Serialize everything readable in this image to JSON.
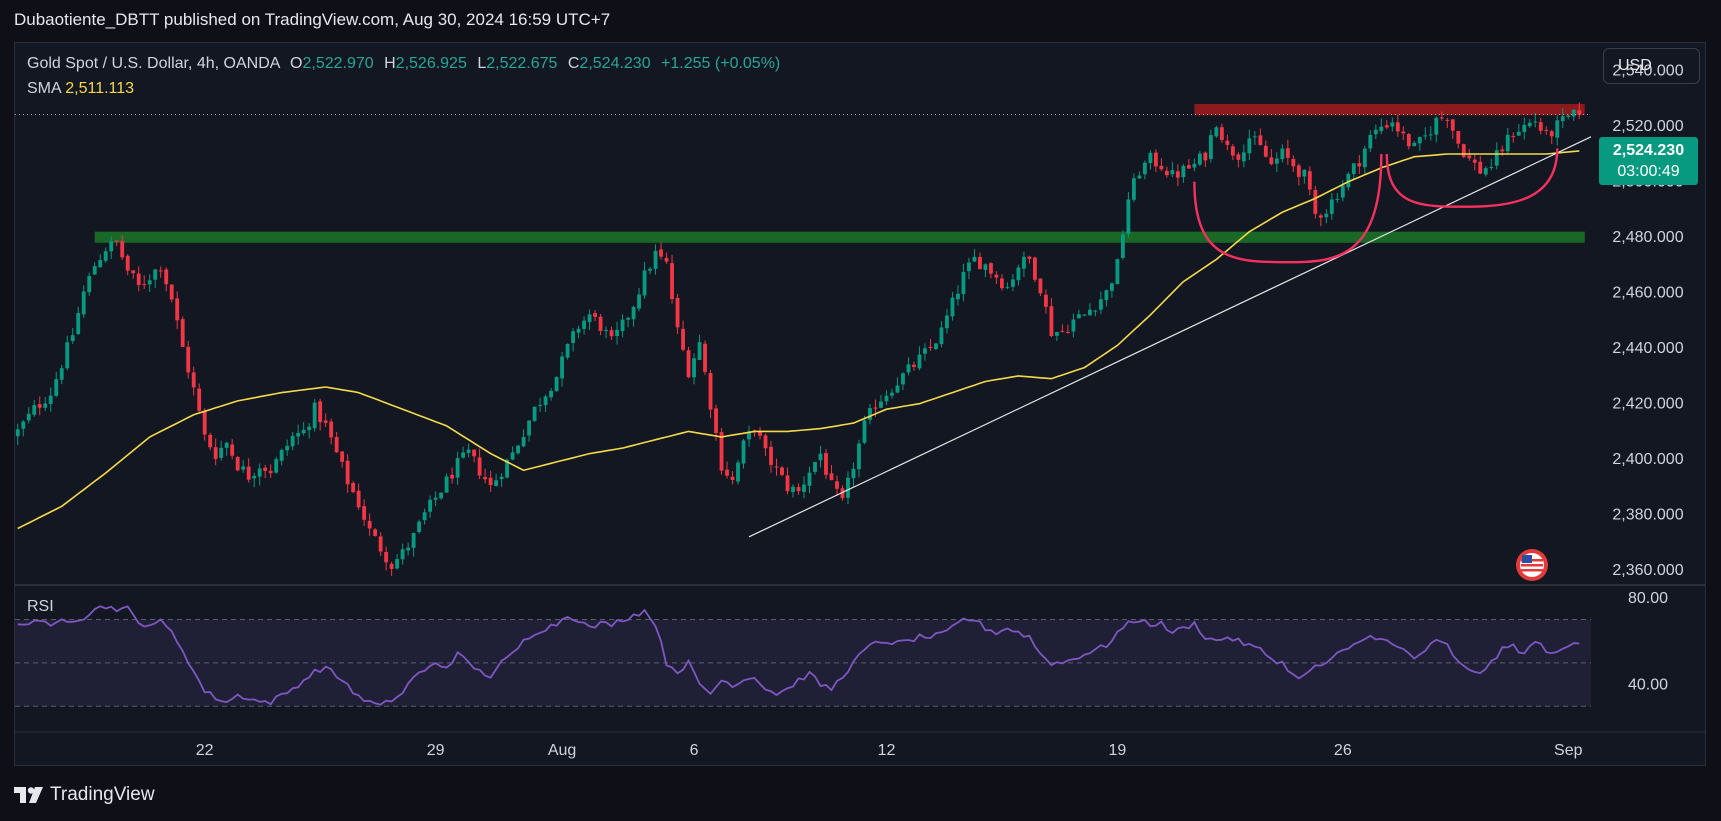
{
  "header": {
    "publisher_line": "Dubaotiente_DBTT published on TradingView.com, Aug 30, 2024 16:59 UTC+7"
  },
  "legend": {
    "symbol": "Gold Spot / U.S. Dollar, 4h, OANDA",
    "o_label": "O",
    "o_value": "2,522.970",
    "h_label": "H",
    "h_value": "2,526.925",
    "l_label": "L",
    "l_value": "2,522.675",
    "c_label": "C",
    "c_value": "2,524.230",
    "change": "+1.255 (+0.05%)",
    "sma_label": "SMA",
    "sma_value": "2,511.113"
  },
  "currency_button": "USD",
  "last_price": {
    "price": "2,524.230",
    "countdown": "03:00:49"
  },
  "rsi_label": "RSI",
  "brand": "TradingView",
  "colors": {
    "up": "#089981",
    "down": "#f23645",
    "sma": "#f5d94a",
    "rsi": "#7e57c2",
    "resistance_zone": "#b71c1c",
    "support_zone": "#1b7d28",
    "pattern_curves": "#f7315f"
  },
  "chart_data": [
    {
      "type": "candlestick",
      "title": "Gold Spot / U.S. Dollar, 4h, OANDA",
      "interval": "4h",
      "x_tick_labels": [
        "22",
        "29",
        "Aug",
        "6",
        "12",
        "19",
        "26",
        "Sep"
      ],
      "y_tick_labels": [
        "2,540.000",
        "2,520.000",
        "2,500.000",
        "2,480.000",
        "2,460.000",
        "2,440.000",
        "2,420.000",
        "2,400.000",
        "2,380.000",
        "2,360.000"
      ],
      "ylim": [
        2355,
        2550
      ],
      "y_ticks": [
        2540,
        2520,
        2500,
        2480,
        2460,
        2440,
        2420,
        2400,
        2380,
        2360
      ],
      "x_tick_bars": [
        34,
        76,
        99,
        123,
        158,
        200,
        241,
        282
      ],
      "bars_total": 285,
      "close_path": [
        [
          0,
          2410
        ],
        [
          3,
          2418
        ],
        [
          6,
          2424
        ],
        [
          10,
          2445
        ],
        [
          12,
          2460
        ],
        [
          14,
          2470
        ],
        [
          16,
          2476
        ],
        [
          18,
          2478
        ],
        [
          20,
          2468
        ],
        [
          22,
          2462
        ],
        [
          24,
          2466
        ],
        [
          26,
          2470
        ],
        [
          28,
          2458
        ],
        [
          30,
          2440
        ],
        [
          32,
          2425
        ],
        [
          34,
          2408
        ],
        [
          36,
          2402
        ],
        [
          38,
          2406
        ],
        [
          40,
          2398
        ],
        [
          42,
          2394
        ],
        [
          44,
          2398
        ],
        [
          46,
          2396
        ],
        [
          48,
          2402
        ],
        [
          50,
          2408
        ],
        [
          52,
          2410
        ],
        [
          54,
          2418
        ],
        [
          56,
          2412
        ],
        [
          58,
          2402
        ],
        [
          60,
          2392
        ],
        [
          62,
          2384
        ],
        [
          64,
          2374
        ],
        [
          66,
          2368
        ],
        [
          68,
          2362
        ],
        [
          70,
          2366
        ],
        [
          72,
          2372
        ],
        [
          74,
          2380
        ],
        [
          76,
          2386
        ],
        [
          78,
          2392
        ],
        [
          80,
          2398
        ],
        [
          82,
          2402
        ],
        [
          84,
          2396
        ],
        [
          86,
          2390
        ],
        [
          88,
          2396
        ],
        [
          90,
          2402
        ],
        [
          92,
          2410
        ],
        [
          94,
          2418
        ],
        [
          96,
          2424
        ],
        [
          98,
          2430
        ],
        [
          100,
          2440
        ],
        [
          102,
          2448
        ],
        [
          104,
          2452
        ],
        [
          106,
          2448
        ],
        [
          108,
          2442
        ],
        [
          110,
          2448
        ],
        [
          112,
          2456
        ],
        [
          114,
          2466
        ],
        [
          116,
          2474
        ],
        [
          118,
          2470
        ],
        [
          120,
          2446
        ],
        [
          122,
          2432
        ],
        [
          124,
          2442
        ],
        [
          126,
          2420
        ],
        [
          128,
          2398
        ],
        [
          130,
          2392
        ],
        [
          132,
          2405
        ],
        [
          134,
          2412
        ],
        [
          136,
          2402
        ],
        [
          138,
          2396
        ],
        [
          140,
          2390
        ],
        [
          142,
          2388
        ],
        [
          144,
          2396
        ],
        [
          146,
          2402
        ],
        [
          148,
          2390
        ],
        [
          150,
          2384
        ],
        [
          152,
          2398
        ],
        [
          154,
          2412
        ],
        [
          156,
          2420
        ],
        [
          158,
          2424
        ],
        [
          160,
          2428
        ],
        [
          162,
          2432
        ],
        [
          164,
          2436
        ],
        [
          166,
          2440
        ],
        [
          168,
          2446
        ],
        [
          170,
          2456
        ],
        [
          172,
          2466
        ],
        [
          174,
          2472
        ],
        [
          176,
          2470
        ],
        [
          178,
          2466
        ],
        [
          180,
          2462
        ],
        [
          182,
          2470
        ],
        [
          184,
          2472
        ],
        [
          186,
          2462
        ],
        [
          188,
          2446
        ],
        [
          190,
          2446
        ],
        [
          192,
          2450
        ],
        [
          194,
          2452
        ],
        [
          196,
          2456
        ],
        [
          198,
          2460
        ],
        [
          200,
          2470
        ],
        [
          202,
          2494
        ],
        [
          204,
          2504
        ],
        [
          206,
          2508
        ],
        [
          208,
          2506
        ],
        [
          210,
          2502
        ],
        [
          212,
          2504
        ],
        [
          214,
          2506
        ],
        [
          216,
          2510
        ],
        [
          218,
          2522
        ],
        [
          220,
          2512
        ],
        [
          222,
          2510
        ],
        [
          224,
          2516
        ],
        [
          226,
          2512
        ],
        [
          228,
          2506
        ],
        [
          230,
          2510
        ],
        [
          232,
          2506
        ],
        [
          234,
          2502
        ],
        [
          236,
          2488
        ],
        [
          238,
          2490
        ],
        [
          240,
          2496
        ],
        [
          242,
          2502
        ],
        [
          244,
          2508
        ],
        [
          246,
          2516
        ],
        [
          248,
          2520
        ],
        [
          250,
          2522
        ],
        [
          252,
          2516
        ],
        [
          254,
          2512
        ],
        [
          256,
          2516
        ],
        [
          258,
          2522
        ],
        [
          260,
          2524
        ],
        [
          262,
          2514
        ],
        [
          264,
          2508
        ],
        [
          266,
          2504
        ],
        [
          268,
          2506
        ],
        [
          270,
          2512
        ],
        [
          272,
          2518
        ],
        [
          274,
          2520
        ],
        [
          276,
          2522
        ],
        [
          278,
          2516
        ],
        [
          280,
          2520
        ],
        [
          282,
          2523
        ],
        [
          284,
          2524.23
        ]
      ],
      "sma_path": [
        [
          0,
          2375
        ],
        [
          8,
          2383
        ],
        [
          16,
          2395
        ],
        [
          24,
          2408
        ],
        [
          32,
          2416
        ],
        [
          40,
          2421
        ],
        [
          48,
          2424
        ],
        [
          56,
          2426
        ],
        [
          62,
          2424
        ],
        [
          70,
          2418
        ],
        [
          78,
          2412
        ],
        [
          86,
          2402
        ],
        [
          92,
          2396
        ],
        [
          98,
          2399
        ],
        [
          104,
          2402
        ],
        [
          110,
          2404
        ],
        [
          116,
          2407
        ],
        [
          122,
          2410
        ],
        [
          128,
          2408
        ],
        [
          134,
          2410
        ],
        [
          140,
          2410
        ],
        [
          146,
          2411
        ],
        [
          152,
          2413
        ],
        [
          158,
          2418
        ],
        [
          164,
          2420
        ],
        [
          170,
          2424
        ],
        [
          176,
          2428
        ],
        [
          182,
          2430
        ],
        [
          188,
          2429
        ],
        [
          194,
          2433
        ],
        [
          200,
          2441
        ],
        [
          206,
          2452
        ],
        [
          212,
          2464
        ],
        [
          218,
          2472
        ],
        [
          224,
          2482
        ],
        [
          230,
          2489
        ],
        [
          236,
          2494
        ],
        [
          242,
          2500
        ],
        [
          248,
          2505
        ],
        [
          254,
          2509
        ],
        [
          260,
          2510
        ],
        [
          266,
          2510
        ],
        [
          272,
          2510
        ],
        [
          278,
          2510
        ],
        [
          284,
          2511.113
        ]
      ],
      "last_price": 2524.23,
      "sma_last": 2511.113,
      "resistance_zone": [
        2524,
        2528
      ],
      "support_zone": [
        2478,
        2482
      ],
      "support_zone_bars": [
        14,
        284
      ],
      "resistance_zone_bars": [
        214,
        284
      ],
      "trendline": [
        [
          133,
          2372
        ],
        [
          287,
          2517
        ]
      ],
      "rounding_bottoms": [
        {
          "start": [
            214,
            2500
          ],
          "bottom": [
            232,
            2471
          ],
          "end": [
            248,
            2510
          ]
        },
        {
          "start": [
            249,
            2510
          ],
          "bottom": [
            264,
            2491
          ],
          "end": [
            280,
            2512
          ]
        }
      ]
    },
    {
      "type": "line",
      "title": "RSI",
      "y_tick_labels": [
        "80.00",
        "40.00"
      ],
      "ylim": [
        20,
        85
      ],
      "upper_band": 70,
      "mid_band": 50,
      "lower_band": 30,
      "values_path": [
        [
          0,
          67
        ],
        [
          2,
          69
        ],
        [
          4,
          70
        ],
        [
          6,
          66
        ],
        [
          8,
          70
        ],
        [
          10,
          70
        ],
        [
          12,
          71
        ],
        [
          14,
          75
        ],
        [
          16,
          76
        ],
        [
          18,
          75
        ],
        [
          20,
          75
        ],
        [
          22,
          68
        ],
        [
          24,
          68
        ],
        [
          26,
          69
        ],
        [
          28,
          64
        ],
        [
          30,
          56
        ],
        [
          32,
          46
        ],
        [
          34,
          37
        ],
        [
          36,
          34
        ],
        [
          38,
          32
        ],
        [
          40,
          35
        ],
        [
          42,
          34
        ],
        [
          44,
          32
        ],
        [
          46,
          32
        ],
        [
          48,
          35
        ],
        [
          50,
          38
        ],
        [
          52,
          42
        ],
        [
          54,
          46
        ],
        [
          56,
          48
        ],
        [
          58,
          44
        ],
        [
          60,
          40
        ],
        [
          62,
          34
        ],
        [
          64,
          32
        ],
        [
          66,
          30
        ],
        [
          68,
          33
        ],
        [
          70,
          36
        ],
        [
          72,
          44
        ],
        [
          74,
          46
        ],
        [
          76,
          50
        ],
        [
          78,
          48
        ],
        [
          80,
          54
        ],
        [
          82,
          50
        ],
        [
          84,
          46
        ],
        [
          86,
          44
        ],
        [
          88,
          50
        ],
        [
          90,
          54
        ],
        [
          92,
          60
        ],
        [
          94,
          64
        ],
        [
          96,
          66
        ],
        [
          98,
          68
        ],
        [
          100,
          72
        ],
        [
          102,
          70
        ],
        [
          104,
          66
        ],
        [
          106,
          68
        ],
        [
          108,
          68
        ],
        [
          110,
          70
        ],
        [
          112,
          72
        ],
        [
          114,
          74
        ],
        [
          116,
          68
        ],
        [
          118,
          50
        ],
        [
          120,
          46
        ],
        [
          122,
          50
        ],
        [
          124,
          40
        ],
        [
          126,
          36
        ],
        [
          128,
          42
        ],
        [
          130,
          40
        ],
        [
          132,
          42
        ],
        [
          134,
          44
        ],
        [
          136,
          38
        ],
        [
          138,
          36
        ],
        [
          140,
          38
        ],
        [
          142,
          42
        ],
        [
          144,
          45
        ],
        [
          146,
          40
        ],
        [
          148,
          38
        ],
        [
          150,
          44
        ],
        [
          152,
          50
        ],
        [
          154,
          56
        ],
        [
          156,
          59
        ],
        [
          158,
          60
        ],
        [
          160,
          59
        ],
        [
          162,
          60
        ],
        [
          164,
          62
        ],
        [
          166,
          62
        ],
        [
          168,
          63
        ],
        [
          170,
          66
        ],
        [
          172,
          70
        ],
        [
          174,
          70
        ],
        [
          176,
          66
        ],
        [
          178,
          64
        ],
        [
          180,
          66
        ],
        [
          182,
          64
        ],
        [
          184,
          62
        ],
        [
          186,
          54
        ],
        [
          188,
          50
        ],
        [
          190,
          50
        ],
        [
          192,
          52
        ],
        [
          194,
          54
        ],
        [
          196,
          56
        ],
        [
          198,
          58
        ],
        [
          200,
          64
        ],
        [
          202,
          68
        ],
        [
          204,
          70
        ],
        [
          206,
          68
        ],
        [
          208,
          68
        ],
        [
          210,
          64
        ],
        [
          212,
          66
        ],
        [
          214,
          68
        ],
        [
          216,
          62
        ],
        [
          218,
          60
        ],
        [
          220,
          62
        ],
        [
          222,
          60
        ],
        [
          224,
          58
        ],
        [
          226,
          56
        ],
        [
          228,
          52
        ],
        [
          230,
          50
        ],
        [
          232,
          44
        ],
        [
          234,
          44
        ],
        [
          236,
          48
        ],
        [
          238,
          50
        ],
        [
          240,
          54
        ],
        [
          242,
          56
        ],
        [
          244,
          60
        ],
        [
          246,
          62
        ],
        [
          248,
          62
        ],
        [
          250,
          58
        ],
        [
          252,
          56
        ],
        [
          254,
          52
        ],
        [
          256,
          56
        ],
        [
          258,
          60
        ],
        [
          260,
          58
        ],
        [
          262,
          50
        ],
        [
          264,
          46
        ],
        [
          266,
          46
        ],
        [
          268,
          50
        ],
        [
          270,
          56
        ],
        [
          272,
          58
        ],
        [
          274,
          54
        ],
        [
          276,
          60
        ],
        [
          278,
          56
        ],
        [
          280,
          54
        ],
        [
          282,
          58
        ],
        [
          284,
          59
        ]
      ]
    }
  ]
}
